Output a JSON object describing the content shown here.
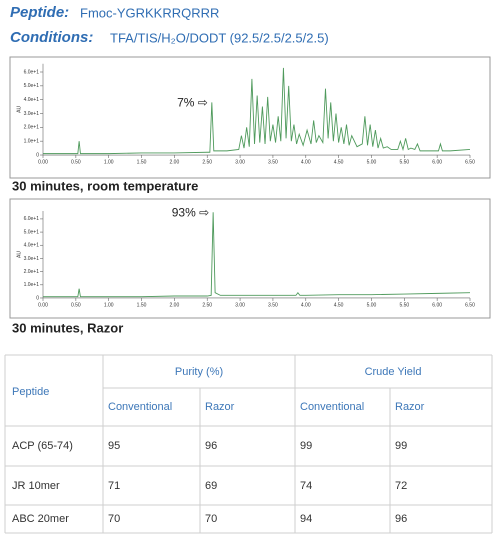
{
  "header": {
    "peptide_label": "Peptide:",
    "peptide": "Fmoc-YGRKKRRQRRR",
    "conditions_label": "Conditions:",
    "conditions": "TFA/TIS/H₂O/DODT (92.5/2.5/2.5/2.5)"
  },
  "chart_data": [
    {
      "type": "line",
      "caption": "30 minutes, room temperature",
      "ylabel": "AU",
      "annotation": "7% ⇨",
      "annotation_x": 2.57,
      "annotation_y": 38,
      "color": "#4f9a5c",
      "x": [
        0,
        0.5,
        0.53,
        0.55,
        0.57,
        1,
        1.5,
        2,
        2.5,
        2.54,
        2.57,
        2.6,
        2.8,
        2.98,
        3.02,
        3.06,
        3.1,
        3.14,
        3.18,
        3.22,
        3.26,
        3.3,
        3.34,
        3.38,
        3.42,
        3.46,
        3.5,
        3.54,
        3.58,
        3.62,
        3.66,
        3.7,
        3.74,
        3.78,
        3.82,
        3.86,
        3.9,
        3.96,
        4.02,
        4.08,
        4.12,
        4.16,
        4.2,
        4.26,
        4.3,
        4.34,
        4.38,
        4.42,
        4.46,
        4.5,
        4.54,
        4.58,
        4.62,
        4.66,
        4.7,
        4.78,
        4.86,
        4.9,
        4.94,
        4.98,
        5.02,
        5.06,
        5.1,
        5.14,
        5.18,
        5.24,
        5.3,
        5.4,
        5.44,
        5.48,
        5.52,
        5.56,
        5.6,
        5.66,
        5.7,
        5.74,
        5.9,
        6.02,
        6.05,
        6.08,
        6.2,
        6.5
      ],
      "values": [
        1,
        1,
        1,
        10,
        1,
        1,
        1.5,
        1.5,
        2,
        2,
        38,
        3,
        3,
        4,
        14,
        5,
        20,
        6,
        55,
        8,
        43,
        9,
        35,
        8,
        42,
        10,
        22,
        9,
        28,
        10,
        63,
        12,
        50,
        10,
        22,
        8,
        15,
        7,
        18,
        8,
        25,
        9,
        14,
        9,
        48,
        12,
        38,
        10,
        30,
        9,
        20,
        8,
        22,
        7,
        14,
        6,
        8,
        28,
        7,
        22,
        6,
        18,
        5,
        12,
        5,
        6,
        4,
        4,
        10,
        4,
        12,
        4,
        5,
        4,
        8,
        3,
        3,
        3,
        8,
        3,
        3,
        4
      ],
      "xlim": [
        0,
        6.5
      ],
      "ylim": [
        -1,
        66
      ],
      "xticks": [
        {
          "value": 0,
          "label": "0.00"
        },
        {
          "value": 0.5,
          "label": "0.50"
        },
        {
          "value": 1,
          "label": "1.00"
        },
        {
          "value": 1.5,
          "label": "1.50"
        },
        {
          "value": 2,
          "label": "2.00"
        },
        {
          "value": 2.5,
          "label": "2.50"
        },
        {
          "value": 3,
          "label": "3.00"
        },
        {
          "value": 3.5,
          "label": "3.50"
        },
        {
          "value": 4,
          "label": "4.00"
        },
        {
          "value": 4.5,
          "label": "4.50"
        },
        {
          "value": 5,
          "label": "5.00"
        },
        {
          "value": 5.5,
          "label": "5.50"
        },
        {
          "value": 6,
          "label": "6.00"
        },
        {
          "value": 6.5,
          "label": "6.50"
        }
      ],
      "yticks": [
        0,
        {
          "value": 10,
          "label": "1.0e+1"
        },
        {
          "value": 20,
          "label": "2.0e+1"
        },
        {
          "value": 30,
          "label": "3.0e+1"
        },
        {
          "value": 40,
          "label": "4.0e+1"
        },
        {
          "value": 50,
          "label": "5.0e+1"
        },
        {
          "value": 60,
          "label": "6.0e+1"
        }
      ]
    },
    {
      "type": "line",
      "caption": "30 minutes, Razor",
      "ylabel": "AU",
      "annotation": "93% ⇨",
      "annotation_x": 2.59,
      "annotation_y": 65,
      "color": "#4f9a5c",
      "x": [
        0,
        0.5,
        0.53,
        0.55,
        0.57,
        1,
        1.5,
        2,
        2.5,
        2.56,
        2.59,
        2.62,
        2.7,
        3,
        3.5,
        3.85,
        3.88,
        3.91,
        4,
        4.5,
        5,
        5.5,
        6,
        6.5
      ],
      "values": [
        1,
        1,
        1,
        7,
        1,
        1,
        1,
        1.5,
        1.5,
        2,
        65,
        4,
        2,
        2,
        2,
        2,
        4,
        2,
        2,
        2.5,
        2.5,
        3,
        3.5,
        4
      ],
      "xlim": [
        0,
        6.5
      ],
      "ylim": [
        -1,
        66
      ],
      "xticks": [
        {
          "value": 0,
          "label": "0.00"
        },
        {
          "value": 0.5,
          "label": "0.50"
        },
        {
          "value": 1,
          "label": "1.00"
        },
        {
          "value": 1.5,
          "label": "1.50"
        },
        {
          "value": 2,
          "label": "2.00"
        },
        {
          "value": 2.5,
          "label": "2.50"
        },
        {
          "value": 3,
          "label": "3.00"
        },
        {
          "value": 3.5,
          "label": "3.50"
        },
        {
          "value": 4,
          "label": "4.00"
        },
        {
          "value": 4.5,
          "label": "4.50"
        },
        {
          "value": 5,
          "label": "5.00"
        },
        {
          "value": 5.5,
          "label": "5.50"
        },
        {
          "value": 6,
          "label": "6.00"
        },
        {
          "value": 6.5,
          "label": "6.50"
        }
      ],
      "yticks": [
        0,
        {
          "value": 10,
          "label": "1.0e+1"
        },
        {
          "value": 20,
          "label": "2.0e+1"
        },
        {
          "value": 30,
          "label": "3.0e+1"
        },
        {
          "value": 40,
          "label": "4.0e+1"
        },
        {
          "value": 50,
          "label": "5.0e+1"
        },
        {
          "value": 60,
          "label": "6.0e+1"
        }
      ]
    }
  ],
  "table": {
    "groups": [
      "Purity (%)",
      "Crude Yield"
    ],
    "first_header": "Peptide",
    "subheaders": [
      "Conventional",
      "Razor",
      "Conventional",
      "Razor"
    ],
    "rows": [
      [
        "ACP (65-74)",
        95,
        96,
        99,
        99
      ],
      [
        "JR 10mer",
        71,
        69,
        74,
        72
      ],
      [
        "ABC 20mer",
        70,
        70,
        94,
        96
      ]
    ]
  }
}
